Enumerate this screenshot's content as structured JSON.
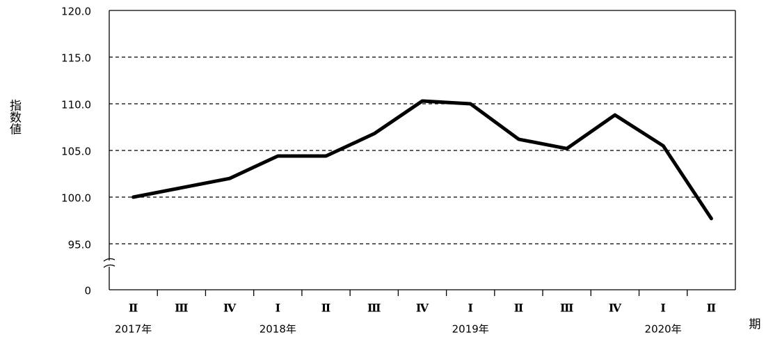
{
  "chart_data": {
    "type": "line",
    "y_axis_label": "指数値",
    "x_axis_label": "期",
    "categories": [
      "Ⅱ",
      "Ⅲ",
      "Ⅳ",
      "Ⅰ",
      "Ⅱ",
      "Ⅲ",
      "Ⅳ",
      "Ⅰ",
      "Ⅱ",
      "Ⅲ",
      "Ⅳ",
      "Ⅰ",
      "Ⅱ"
    ],
    "year_labels": [
      "2017年",
      null,
      null,
      "2018年",
      null,
      null,
      null,
      "2019年",
      null,
      null,
      null,
      "2020年",
      null
    ],
    "values": [
      100.0,
      101.0,
      102.0,
      104.4,
      104.4,
      106.8,
      110.3,
      110.0,
      106.2,
      105.2,
      108.8,
      105.5,
      97.7
    ],
    "color": "#000000",
    "ylim": [
      0,
      120
    ],
    "yticks": [
      0,
      {
        "value": 95,
        "label": "95.0"
      },
      {
        "value": 100,
        "label": "100.0"
      },
      {
        "value": 105,
        "label": "105.0"
      },
      {
        "value": 110,
        "label": "110.0"
      },
      {
        "value": 115,
        "label": "115.0"
      },
      {
        "value": 120,
        "label": "120.0"
      }
    ],
    "axis_break": true,
    "grid": true
  }
}
